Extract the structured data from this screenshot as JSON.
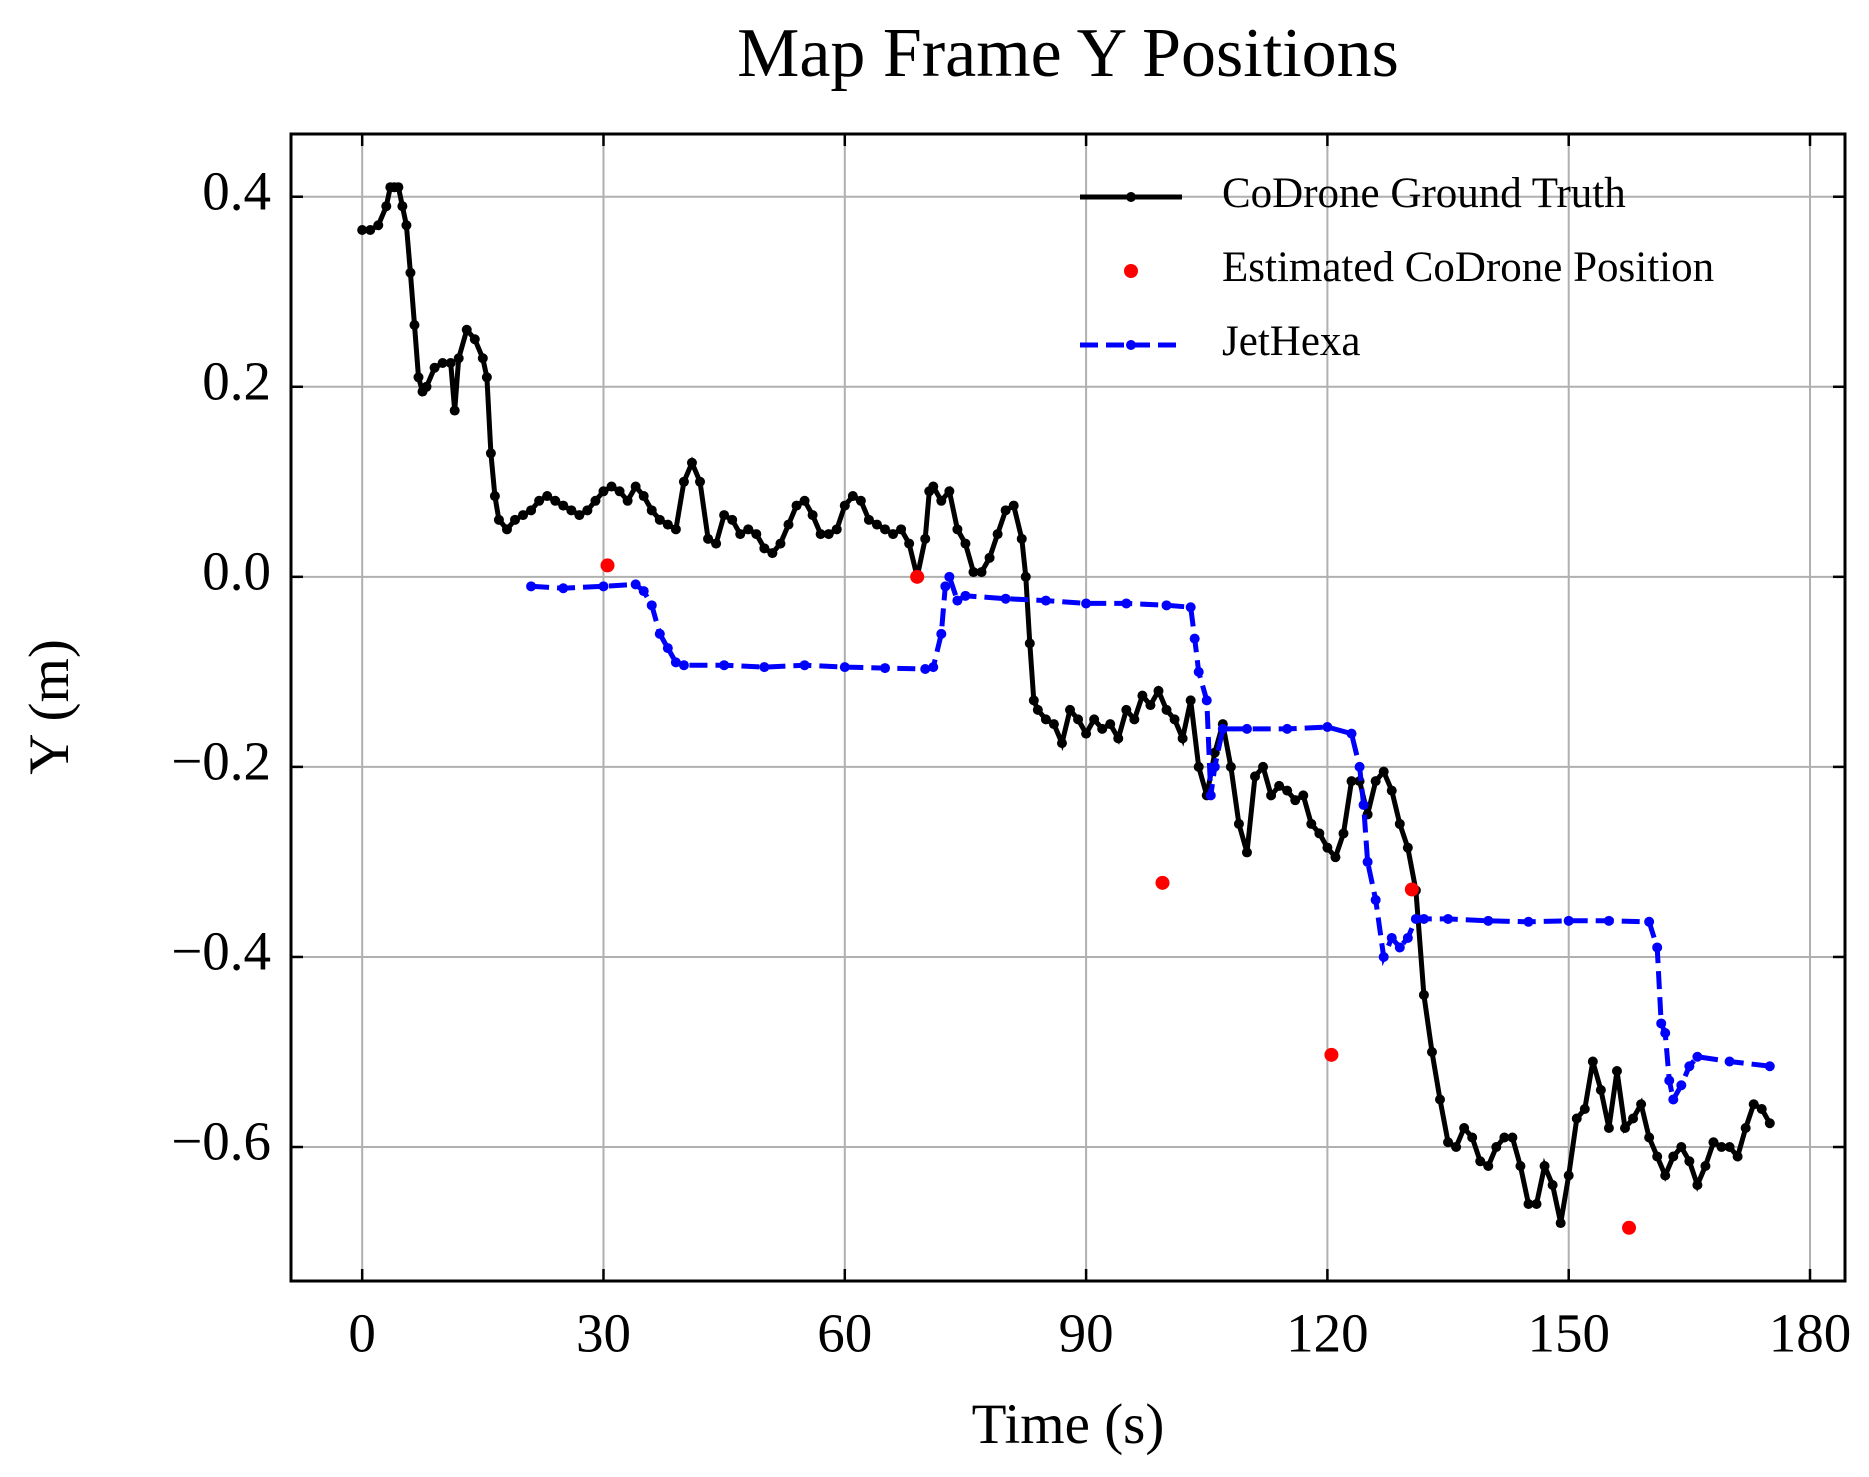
{
  "chart_data": {
    "type": "line",
    "title": "Map Frame Y Positions",
    "x_label": "Time (s)",
    "y_label": "Y (m)",
    "xlim": [
      -8.85,
      184.35
    ],
    "ylim": [
      -0.741,
      0.466
    ],
    "xticks": [
      0,
      30,
      60,
      90,
      120,
      150,
      180
    ],
    "yticks": [
      {
        "value": -0.6,
        "label": "−0.6"
      },
      {
        "value": -0.4,
        "label": "−0.4"
      },
      {
        "value": -0.2,
        "label": "−0.2"
      },
      {
        "value": 0,
        "label": "0.0"
      },
      0.2,
      0.4
    ],
    "grid": true,
    "legend": "upper right",
    "series": [
      {
        "name": "CoDrone Ground Truth",
        "color": "#000000",
        "style": "solid",
        "x": [
          0,
          1,
          2,
          3,
          3.5,
          4,
          4.5,
          5,
          5.5,
          6,
          6.5,
          7,
          7.5,
          8,
          9,
          10,
          11,
          11.5,
          12,
          13,
          14,
          15,
          15.5,
          16,
          16.5,
          17,
          18,
          19,
          20,
          21,
          22,
          23,
          24,
          25,
          26,
          27,
          28,
          29,
          30,
          31,
          32,
          33,
          34,
          35,
          36,
          37,
          38,
          39,
          40,
          41,
          42,
          43,
          44,
          45,
          46,
          47,
          48,
          49,
          50,
          51,
          52,
          53,
          54,
          55,
          56,
          57,
          58,
          59,
          60,
          61,
          62,
          63,
          64,
          65,
          66,
          67,
          68,
          69,
          70,
          70.5,
          71,
          72,
          73,
          74,
          75,
          76,
          77,
          78,
          79,
          80,
          81,
          82,
          82.5,
          83,
          83.5,
          84,
          85,
          86,
          87,
          88,
          89,
          90,
          91,
          92,
          93,
          94,
          95,
          96,
          97,
          98,
          99,
          100,
          101,
          102,
          103,
          104,
          105,
          106,
          107,
          108,
          109,
          110,
          111,
          112,
          113,
          114,
          115,
          116,
          117,
          118,
          119,
          120,
          121,
          122,
          123,
          124,
          125,
          126,
          127,
          128,
          129,
          130,
          131,
          132,
          133,
          134,
          135,
          136,
          137,
          138,
          139,
          140,
          141,
          142,
          143,
          144,
          145,
          146,
          147,
          148,
          149,
          150,
          151,
          152,
          153,
          154,
          155,
          156,
          157,
          158,
          159,
          160,
          161,
          162,
          163,
          164,
          165,
          166,
          167,
          168,
          169,
          170,
          171,
          172,
          173,
          174,
          175
        ],
        "values": [
          0.365,
          0.365,
          0.37,
          0.39,
          0.41,
          0.41,
          0.41,
          0.39,
          0.37,
          0.32,
          0.265,
          0.21,
          0.195,
          0.2,
          0.22,
          0.225,
          0.225,
          0.175,
          0.23,
          0.26,
          0.25,
          0.23,
          0.21,
          0.13,
          0.085,
          0.06,
          0.05,
          0.06,
          0.065,
          0.07,
          0.08,
          0.085,
          0.08,
          0.075,
          0.07,
          0.065,
          0.07,
          0.08,
          0.09,
          0.095,
          0.09,
          0.08,
          0.095,
          0.085,
          0.07,
          0.06,
          0.055,
          0.05,
          0.1,
          0.12,
          0.1,
          0.04,
          0.035,
          0.065,
          0.06,
          0.045,
          0.05,
          0.045,
          0.03,
          0.025,
          0.035,
          0.055,
          0.075,
          0.08,
          0.065,
          0.045,
          0.045,
          0.05,
          0.075,
          0.085,
          0.08,
          0.06,
          0.055,
          0.05,
          0.045,
          0.05,
          0.035,
          0.0,
          0.04,
          0.09,
          0.095,
          0.08,
          0.09,
          0.05,
          0.035,
          0.005,
          0.005,
          0.02,
          0.045,
          0.07,
          0.075,
          0.04,
          0.0,
          -0.07,
          -0.13,
          -0.14,
          -0.15,
          -0.155,
          -0.175,
          -0.14,
          -0.15,
          -0.165,
          -0.15,
          -0.16,
          -0.155,
          -0.17,
          -0.14,
          -0.15,
          -0.125,
          -0.135,
          -0.12,
          -0.14,
          -0.15,
          -0.17,
          -0.13,
          -0.2,
          -0.23,
          -0.185,
          -0.155,
          -0.2,
          -0.26,
          -0.29,
          -0.21,
          -0.2,
          -0.23,
          -0.22,
          -0.225,
          -0.235,
          -0.23,
          -0.26,
          -0.27,
          -0.285,
          -0.295,
          -0.27,
          -0.215,
          -0.215,
          -0.25,
          -0.215,
          -0.205,
          -0.225,
          -0.26,
          -0.285,
          -0.33,
          -0.44,
          -0.5,
          -0.55,
          -0.595,
          -0.6,
          -0.58,
          -0.59,
          -0.615,
          -0.62,
          -0.6,
          -0.59,
          -0.59,
          -0.62,
          -0.66,
          -0.66,
          -0.62,
          -0.64,
          -0.68,
          -0.63,
          -0.57,
          -0.56,
          -0.51,
          -0.54,
          -0.58,
          -0.52,
          -0.58,
          -0.57,
          -0.555,
          -0.59,
          -0.61,
          -0.63,
          -0.61,
          -0.6,
          -0.615,
          -0.64,
          -0.62,
          -0.595,
          -0.6,
          -0.6,
          -0.61,
          -0.58,
          -0.555,
          -0.56,
          -0.575
        ]
      },
      {
        "name": "Estimated CoDrone Position",
        "color": "#ff0000",
        "style": "scatter",
        "x": [
          30.5,
          69,
          99.5,
          120.5,
          130.5,
          157.5
        ],
        "values": [
          0.012,
          0.0,
          -0.322,
          -0.503,
          -0.329,
          -0.685
        ]
      },
      {
        "name": "JetHexa",
        "color": "#0000ff",
        "style": "dashed",
        "x": [
          21,
          25,
          30,
          34,
          35,
          36,
          37,
          38,
          39,
          40,
          45,
          50,
          55,
          60,
          65,
          70,
          71,
          72,
          72.5,
          73,
          74,
          75,
          80,
          85,
          90,
          95,
          100,
          103,
          103.5,
          104,
          105,
          105.5,
          106,
          107,
          110,
          115,
          120,
          123,
          124,
          124.5,
          125,
          126,
          127,
          128,
          129,
          130,
          131,
          132,
          135,
          140,
          145,
          150,
          155,
          160,
          161,
          161.5,
          162,
          162.5,
          163,
          164,
          165,
          166,
          170,
          175
        ],
        "values": [
          -0.01,
          -0.012,
          -0.01,
          -0.008,
          -0.015,
          -0.03,
          -0.06,
          -0.075,
          -0.09,
          -0.093,
          -0.093,
          -0.095,
          -0.093,
          -0.095,
          -0.096,
          -0.097,
          -0.095,
          -0.06,
          -0.01,
          0.0,
          -0.025,
          -0.02,
          -0.023,
          -0.025,
          -0.028,
          -0.028,
          -0.03,
          -0.032,
          -0.065,
          -0.1,
          -0.13,
          -0.23,
          -0.2,
          -0.16,
          -0.16,
          -0.16,
          -0.158,
          -0.165,
          -0.2,
          -0.24,
          -0.3,
          -0.34,
          -0.4,
          -0.38,
          -0.39,
          -0.38,
          -0.36,
          -0.36,
          -0.36,
          -0.362,
          -0.363,
          -0.362,
          -0.362,
          -0.363,
          -0.39,
          -0.47,
          -0.48,
          -0.53,
          -0.55,
          -0.535,
          -0.515,
          -0.505,
          -0.51,
          -0.515
        ]
      }
    ]
  }
}
